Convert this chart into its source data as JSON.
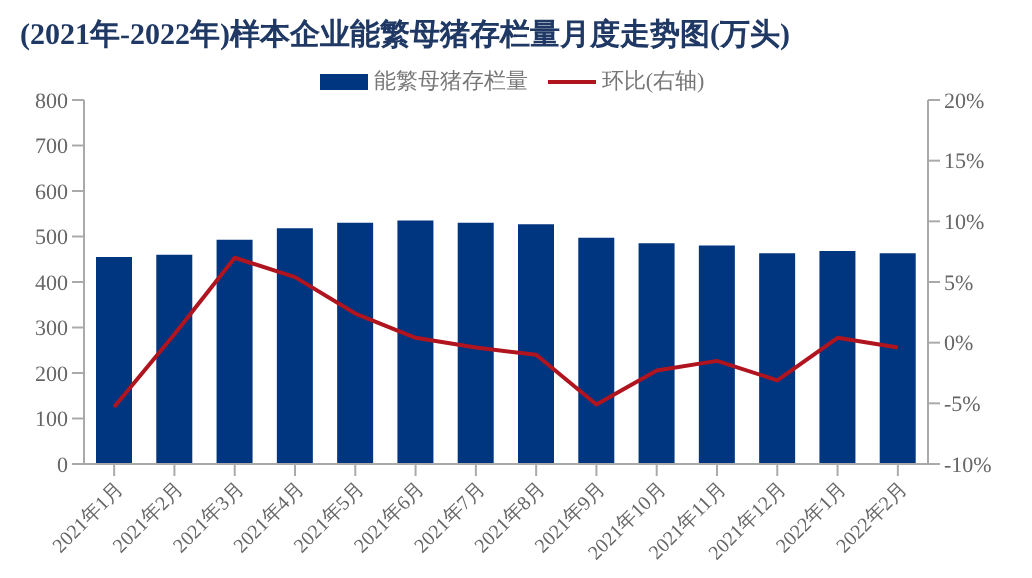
{
  "chart_data": {
    "type": "bar",
    "title": "(2021年-2022年)样本企业能繁母猪存栏量月度走势图(万头)",
    "categories": [
      "2021年1月",
      "2021年2月",
      "2021年3月",
      "2021年4月",
      "2021年5月",
      "2021年6月",
      "2021年7月",
      "2021年8月",
      "2021年9月",
      "2021年10月",
      "2021年11月",
      "2021年12月",
      "2022年1月",
      "2022年2月"
    ],
    "series": [
      {
        "name": "能繁母猪存栏量",
        "color": "#003580",
        "values": [
          455,
          460,
          493,
          518,
          530,
          535,
          530,
          527,
          497,
          485,
          480,
          463,
          468,
          463
        ]
      },
      {
        "name": "环比(右轴)",
        "type": "line",
        "axis": "y2",
        "color": "#b0141e",
        "values": [
          -5.3,
          0.7,
          7.0,
          5.4,
          2.4,
          0.4,
          -0.4,
          -1.0,
          -5.1,
          -2.3,
          -1.5,
          -3.1,
          0.4,
          -0.4
        ]
      }
    ],
    "ylim": [
      0,
      800
    ],
    "yticks": [
      0,
      100,
      200,
      300,
      400,
      500,
      600,
      700,
      800
    ],
    "y2lim": [
      -10,
      20
    ],
    "y2ticks": [
      {
        "value": -10,
        "label": "-10%"
      },
      {
        "value": -5,
        "label": "-5%"
      },
      {
        "value": 0,
        "label": "0%"
      },
      {
        "value": 5,
        "label": "5%"
      },
      {
        "value": 10,
        "label": "10%"
      },
      {
        "value": 15,
        "label": "15%"
      },
      {
        "value": 20,
        "label": "20%"
      }
    ],
    "legend": "top",
    "grid": false,
    "marker": "none"
  }
}
